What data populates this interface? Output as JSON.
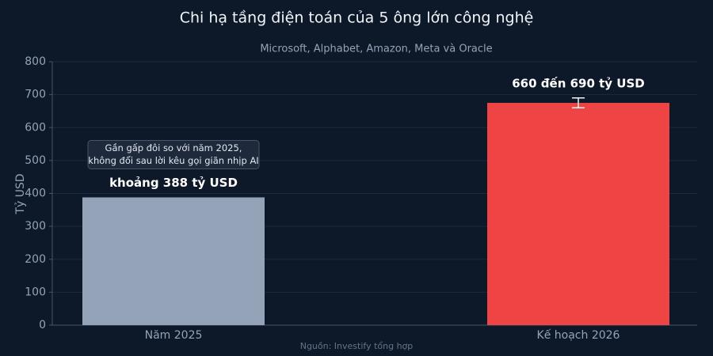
{
  "chart_data": {
    "type": "bar",
    "title": "Chi hạ tầng điện toán của 5 ông lớn công nghệ",
    "subtitle": "Microsoft, Alphabet, Amazon, Meta và Oracle",
    "y_label": "Tỷ USD",
    "source": "Nguồn: Investify tổng hợp",
    "categories": [
      "Năm 2025",
      "Kế hoạch 2026"
    ],
    "values": [
      388,
      675
    ],
    "errors": [
      null,
      15
    ],
    "value_labels": [
      "khoảng 388 tỷ USD",
      "660 đến 690 tỷ USD"
    ],
    "colors": [
      "#94a3b8",
      "#ef4444"
    ],
    "annotation": [
      "Gần gấp đôi so với năm 2025,",
      "không đổi sau lời kêu gọi giãn nhịp AI"
    ],
    "ylim": [
      0,
      800
    ],
    "yticks": [
      0,
      100,
      200,
      300,
      400,
      500,
      600,
      700,
      800
    ],
    "grid": true
  }
}
